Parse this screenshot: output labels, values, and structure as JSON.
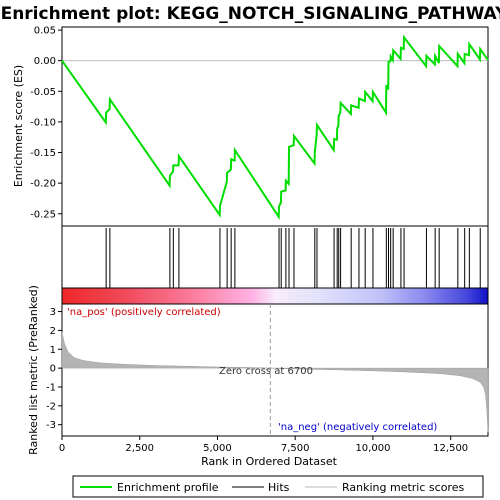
{
  "chart_data": {
    "type": "line",
    "title": "Enrichment plot: KEGG_NOTCH_SIGNALING_PATHWAY",
    "panels": {
      "es": {
        "ylabel": "Enrichment score (ES)",
        "ylim": [
          -0.27,
          0.055
        ],
        "yticks": [
          0.05,
          0.0,
          -0.05,
          -0.1,
          -0.15,
          -0.2,
          -0.25
        ],
        "ytick_labels": [
          "0.05",
          "0.00",
          "-0.05",
          "-0.10",
          "-0.15",
          "-0.20",
          "-0.25"
        ]
      },
      "ranked": {
        "ylabel": "Ranked list metric (PreRanked)",
        "ylim": [
          -3.6,
          3.4
        ],
        "yticks": [
          3,
          2,
          1,
          0,
          -1,
          -2,
          -3
        ],
        "ytick_labels": [
          "3",
          "2",
          "1",
          "0",
          "-1",
          "-2",
          "-3"
        ]
      }
    },
    "xlabel": "Rank in Ordered Dataset",
    "xlim": [
      0,
      13700
    ],
    "xticks": [
      0,
      2500,
      5000,
      7500,
      10000,
      12500
    ],
    "xtick_labels": [
      "0",
      "2,500",
      "5,000",
      "7,500",
      "10,000",
      "12,500"
    ],
    "hits": [
      1420,
      1540,
      3470,
      3580,
      3760,
      5080,
      5310,
      5440,
      5560,
      6980,
      7050,
      7200,
      7300,
      7460,
      8130,
      8200,
      8750,
      8850,
      8900,
      8960,
      9300,
      9550,
      9750,
      10000,
      10430,
      10500,
      10570,
      10650,
      10900,
      11000,
      11720,
      12000,
      12130,
      12730,
      12950,
      13100,
      13450
    ],
    "enrichment_profile": {
      "x": [
        0,
        1410,
        1420,
        1530,
        1540,
        3460,
        3470,
        3570,
        3580,
        3750,
        3760,
        5070,
        5080,
        5300,
        5310,
        5430,
        5440,
        5550,
        5560,
        6970,
        6980,
        7040,
        7050,
        7190,
        7200,
        7290,
        7300,
        7450,
        7460,
        8120,
        8130,
        8190,
        8200,
        8740,
        8750,
        8840,
        8850,
        8890,
        8900,
        8950,
        8960,
        9290,
        9300,
        9540,
        9550,
        9740,
        9750,
        9990,
        10000,
        10420,
        10430,
        10490,
        10500,
        10560,
        10570,
        10640,
        10650,
        10890,
        10900,
        10990,
        11000,
        11710,
        11720,
        11990,
        12000,
        12120,
        12130,
        12720,
        12730,
        12940,
        12950,
        13090,
        13100,
        13440,
        13450,
        13700
      ],
      "es": [
        0.0,
        -0.101,
        -0.085,
        -0.079,
        -0.063,
        -0.204,
        -0.188,
        -0.181,
        -0.171,
        -0.171,
        -0.156,
        -0.252,
        -0.237,
        -0.198,
        -0.183,
        -0.178,
        -0.161,
        -0.163,
        -0.146,
        -0.255,
        -0.238,
        -0.232,
        -0.214,
        -0.212,
        -0.196,
        -0.201,
        -0.141,
        -0.138,
        -0.123,
        -0.168,
        -0.149,
        -0.121,
        -0.105,
        -0.146,
        -0.128,
        -0.129,
        -0.111,
        -0.106,
        -0.09,
        -0.085,
        -0.069,
        -0.087,
        -0.073,
        -0.077,
        -0.062,
        -0.066,
        -0.051,
        -0.066,
        -0.051,
        -0.085,
        -0.04,
        -0.047,
        -0.002,
        -0.001,
        0.007,
        0.001,
        0.017,
        0.003,
        0.021,
        0.019,
        0.038,
        -0.009,
        0.008,
        -0.006,
        0.008,
        -0.004,
        0.024,
        -0.009,
        0.011,
        -0.004,
        0.011,
        0.009,
        0.027,
        0.002,
        0.019,
        0.001
      ]
    },
    "ranked_metric": {
      "x": [
        0,
        80,
        200,
        400,
        700,
        1200,
        2000,
        3000,
        4000,
        5000,
        6000,
        6700,
        7500,
        8500,
        9500,
        10500,
        11500,
        12200,
        12800,
        13200,
        13450,
        13560,
        13620,
        13660,
        13700
      ],
      "values": [
        1.9,
        1.3,
        0.85,
        0.55,
        0.4,
        0.28,
        0.2,
        0.14,
        0.1,
        0.06,
        0.03,
        0.0,
        -0.04,
        -0.08,
        -0.12,
        -0.17,
        -0.24,
        -0.3,
        -0.4,
        -0.55,
        -0.75,
        -1.0,
        -1.4,
        -2.2,
        -3.4
      ]
    },
    "annotations": {
      "pos_label": "'na_pos' (positively correlated)",
      "neg_label": "'na_neg' (negatively correlated)",
      "zero_cross": "Zero cross at 6700",
      "zero_cross_rank": 6700
    },
    "legend": {
      "placement": "bottom",
      "items": [
        {
          "label": "Enrichment profile",
          "color": "#00dd00"
        },
        {
          "label": "Hits",
          "color": "#000000"
        },
        {
          "label": "Ranking metric scores",
          "color": "#bbbbbb"
        }
      ]
    },
    "colors": {
      "profile": "#00dd00",
      "metric_fill": "#b0b0b0",
      "pos_text": "#cc0000",
      "neg_text": "#0000cc",
      "bar_gradient": [
        "#ee2222",
        "#ff6677",
        "#ffaadd",
        "#eeeeff",
        "#ccccff",
        "#6666ee",
        "#1111cc"
      ]
    }
  }
}
